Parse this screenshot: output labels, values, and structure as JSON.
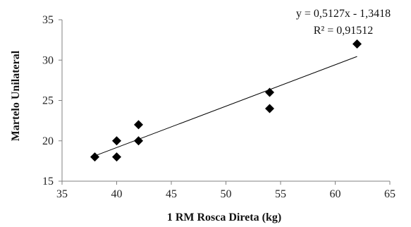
{
  "chart_data": {
    "type": "scatter",
    "xlabel": "1 RM Rosca Direta (kg)",
    "ylabel": "Martelo Unilateral",
    "xlim": [
      35,
      65
    ],
    "ylim": [
      15,
      35
    ],
    "x_ticks": [
      "35",
      "40",
      "45",
      "50",
      "55",
      "60",
      "65"
    ],
    "y_ticks": [
      "15",
      "20",
      "25",
      "30",
      "35"
    ],
    "grid": false,
    "legend": "none",
    "points": [
      {
        "x": 38,
        "y": 18
      },
      {
        "x": 40,
        "y": 20
      },
      {
        "x": 40,
        "y": 18
      },
      {
        "x": 42,
        "y": 22
      },
      {
        "x": 42,
        "y": 20
      },
      {
        "x": 54,
        "y": 26
      },
      {
        "x": 54,
        "y": 24
      },
      {
        "x": 62,
        "y": 32
      }
    ],
    "trendline": {
      "type": "linear",
      "slope": 0.5127,
      "intercept": -1.3418,
      "x_range": [
        38,
        62
      ]
    },
    "annotations": {
      "equation": "y = 0,5127x - 1,3418",
      "r_squared": "R² = 0,91512"
    },
    "colors": {
      "marker": "#000000",
      "line": "#000000",
      "axis": "#808080"
    }
  }
}
